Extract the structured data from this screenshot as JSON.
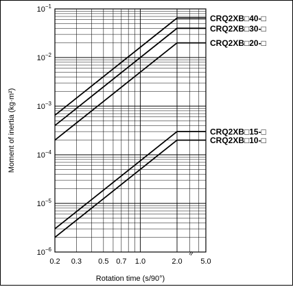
{
  "chart_data": {
    "type": "line",
    "xlabel": "Rotation time (s/90°)",
    "ylabel": "Moment of inertia (kg·m²)",
    "x_scale": "log",
    "y_scale": "log",
    "xlim": [
      0.2,
      5.0
    ],
    "ylim": [
      1e-06,
      0.1
    ],
    "x_ticks": [
      {
        "value": 0.2,
        "label": "0.2"
      },
      {
        "value": 0.3,
        "label": "0.3"
      },
      {
        "value": 0.5,
        "label": "0.5"
      },
      {
        "value": 0.7,
        "label": "0.7"
      },
      {
        "value": 1.0,
        "label": "1.0"
      },
      {
        "value": 2.0,
        "label": "2.0"
      },
      {
        "value": 5.0,
        "label": "5.0"
      }
    ],
    "y_ticks": [
      {
        "value": 0.1,
        "base": "10",
        "exp": "−1"
      },
      {
        "value": 0.01,
        "base": "10",
        "exp": "−2"
      },
      {
        "value": 0.001,
        "base": "10",
        "exp": "−3"
      },
      {
        "value": 0.0001,
        "base": "10",
        "exp": "−4"
      },
      {
        "value": 1e-05,
        "base": "10",
        "exp": "−5"
      },
      {
        "value": 1e-06,
        "base": "10",
        "exp": "−6"
      }
    ],
    "axis_break_mark": "≈",
    "grid": true,
    "series": [
      {
        "name": "CRQ2XB□40-□",
        "x": [
          0.2,
          2.0,
          5.0
        ],
        "y": [
          0.00065,
          0.065,
          0.065
        ]
      },
      {
        "name": "CRQ2XB□30-□",
        "x": [
          0.2,
          2.0,
          5.0
        ],
        "y": [
          0.0004,
          0.04,
          0.04
        ]
      },
      {
        "name": "CRQ2XB□20-□",
        "x": [
          0.2,
          2.0,
          5.0
        ],
        "y": [
          0.0002,
          0.02,
          0.02
        ]
      },
      {
        "name": "CRQ2XB□15-□",
        "x": [
          0.2,
          2.0,
          5.0
        ],
        "y": [
          3e-06,
          0.0003,
          0.0003
        ]
      },
      {
        "name": "CRQ2XB□10-□",
        "x": [
          0.2,
          2.0,
          5.0
        ],
        "y": [
          2e-06,
          0.0002,
          0.0002
        ]
      }
    ]
  }
}
